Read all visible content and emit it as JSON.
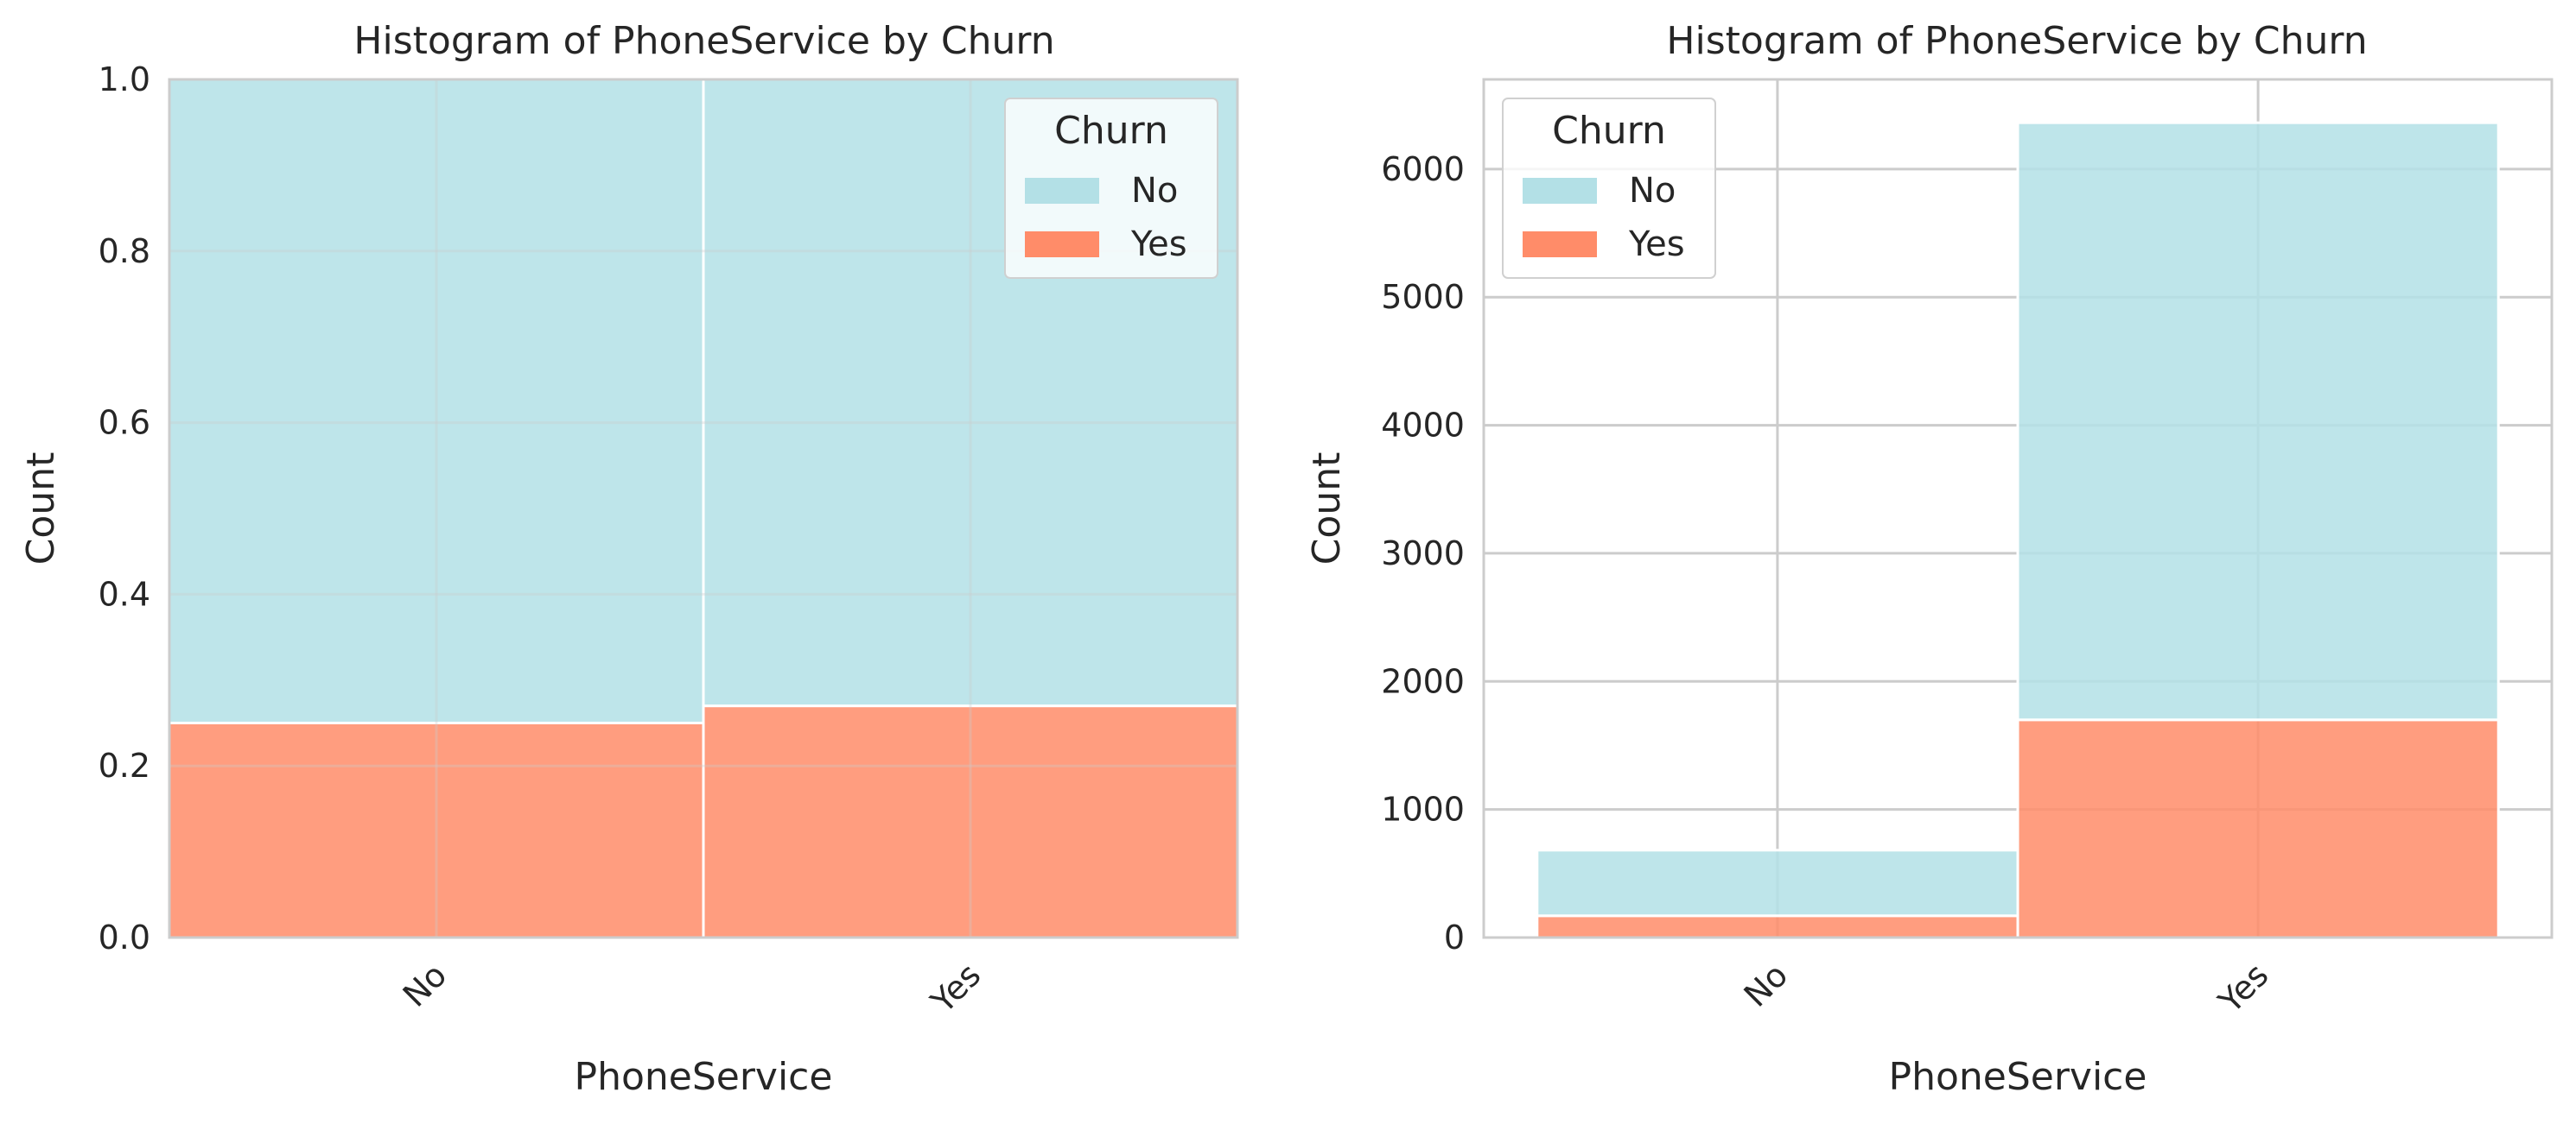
{
  "colors": {
    "no": "#b3e0e6",
    "yes": "#ff8c69"
  },
  "chart_data": [
    {
      "type": "bar",
      "stacked": true,
      "normalized": true,
      "title": "Histogram of PhoneService by Churn",
      "xlabel": "PhoneService",
      "ylabel": "Count",
      "categories": [
        "No",
        "Yes"
      ],
      "ylim": [
        0,
        1.0
      ],
      "yticks": [
        "0.0",
        "0.2",
        "0.4",
        "0.6",
        "0.8",
        "1.0"
      ],
      "grid": true,
      "legend": {
        "title": "Churn",
        "placement": "top-right",
        "entries": [
          "No",
          "Yes"
        ]
      },
      "series": [
        {
          "name": "Yes",
          "values": [
            0.25,
            0.27
          ]
        },
        {
          "name": "No",
          "values": [
            0.75,
            0.73
          ]
        }
      ]
    },
    {
      "type": "bar",
      "stacked": true,
      "title": "Histogram of PhoneService by Churn",
      "xlabel": "PhoneService",
      "ylabel": "Count",
      "categories": [
        "No",
        "Yes"
      ],
      "ylim": [
        0,
        6700
      ],
      "yticks": [
        "0",
        "1000",
        "2000",
        "3000",
        "4000",
        "5000",
        "6000"
      ],
      "grid": true,
      "legend": {
        "title": "Churn",
        "placement": "top-left",
        "entries": [
          "No",
          "Yes"
        ]
      },
      "series": [
        {
          "name": "Yes",
          "values": [
            170,
            1700
          ]
        },
        {
          "name": "No",
          "values": [
            512,
            4662
          ]
        }
      ]
    }
  ]
}
